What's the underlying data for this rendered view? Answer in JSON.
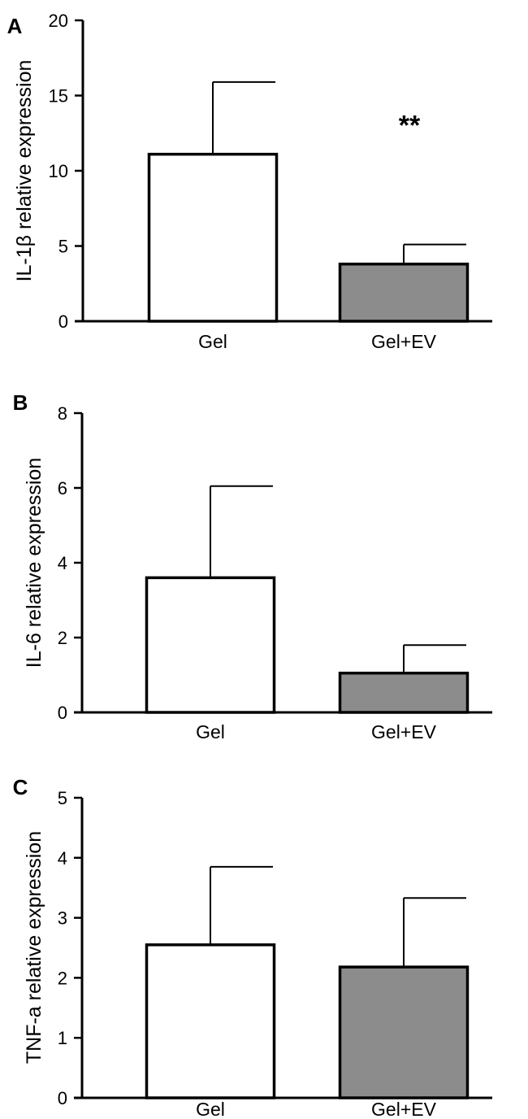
{
  "chart_data": [
    {
      "type": "bar",
      "panel_label": "A",
      "ylabel": "IL-1β relative expression",
      "xlabel": "",
      "categories": [
        "Gel",
        "Gel+EV"
      ],
      "series": [
        {
          "values": [
            11.1,
            3.8
          ],
          "errors": [
            4.8,
            1.3
          ]
        }
      ],
      "bar_colors": [
        "#ffffff",
        "#8c8c8c"
      ],
      "ylim": [
        0,
        20
      ],
      "yticks": [
        0,
        5,
        10,
        15,
        20
      ],
      "grid": false,
      "annotations": [
        {
          "category": "Gel+EV",
          "text": "**"
        }
      ]
    },
    {
      "type": "bar",
      "panel_label": "B",
      "ylabel": "IL-6 relative expression",
      "xlabel": "",
      "categories": [
        "Gel",
        "Gel+EV"
      ],
      "series": [
        {
          "values": [
            3.6,
            1.05
          ],
          "errors": [
            2.45,
            0.75
          ]
        }
      ],
      "bar_colors": [
        "#ffffff",
        "#8c8c8c"
      ],
      "ylim": [
        0,
        8
      ],
      "yticks": [
        0,
        2,
        4,
        6,
        8
      ],
      "grid": false,
      "annotations": []
    },
    {
      "type": "bar",
      "panel_label": "C",
      "ylabel": "TNF-a relative expression",
      "xlabel": "",
      "categories": [
        "Gel",
        "Gel+EV"
      ],
      "series": [
        {
          "values": [
            2.55,
            2.18
          ],
          "errors": [
            1.3,
            1.15
          ]
        }
      ],
      "bar_colors": [
        "#ffffff",
        "#8c8c8c"
      ],
      "ylim": [
        0,
        5
      ],
      "yticks": [
        0,
        1,
        2,
        3,
        4,
        5
      ],
      "grid": false,
      "annotations": []
    }
  ]
}
